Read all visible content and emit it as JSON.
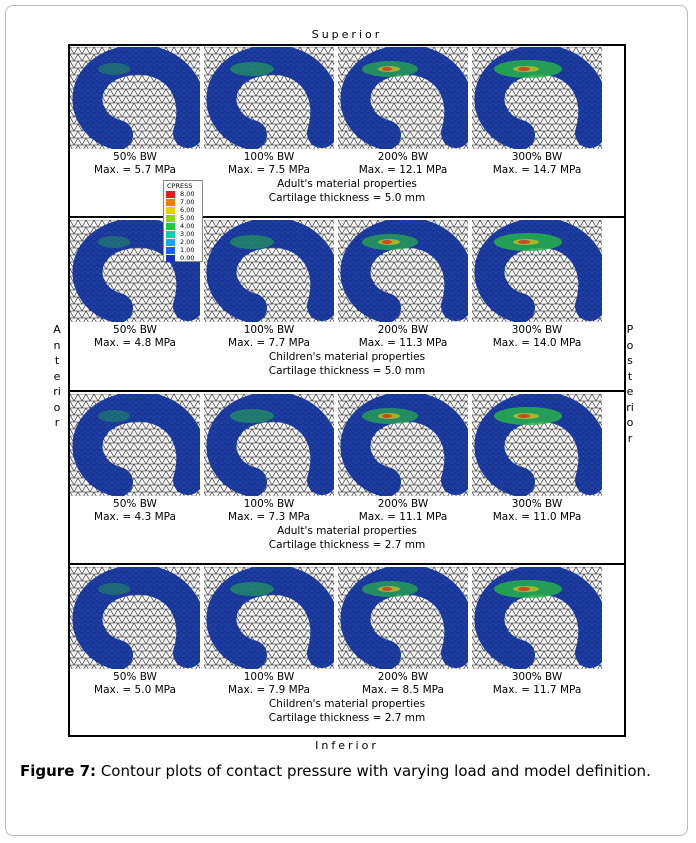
{
  "labels": {
    "superior": "Superior",
    "inferior": "Inferior",
    "anterior": "Anterior",
    "posterior": "Posterior"
  },
  "legend": {
    "title": "CPRESS",
    "values": [
      "8.00",
      "7.00",
      "6.00",
      "5.00",
      "4.00",
      "3.00",
      "2.00",
      "1.00",
      "0.00"
    ]
  },
  "rows": [
    {
      "panels": [
        {
          "load": "50% BW",
          "max": "Max. = 5.7 MPa"
        },
        {
          "load": "100% BW",
          "max": "Max. = 7.5 MPa"
        },
        {
          "load": "200% BW",
          "max": "Max. = 12.1 MPa"
        },
        {
          "load": "300% BW",
          "max": "Max. = 14.7 MPa"
        }
      ],
      "material": "Adult's material properties",
      "thickness": "Cartilage thickness = 5.0 mm"
    },
    {
      "panels": [
        {
          "load": "50% BW",
          "max": "Max. = 4.8 MPa"
        },
        {
          "load": "100% BW",
          "max": "Max. = 7.7 MPa"
        },
        {
          "load": "200% BW",
          "max": "Max. = 11.3 MPa"
        },
        {
          "load": "300% BW",
          "max": "Max. = 14.0 MPa"
        }
      ],
      "material": "Children's material properties",
      "thickness": "Cartilage thickness = 5.0 mm"
    },
    {
      "panels": [
        {
          "load": "50% BW",
          "max": "Max. = 4.3 MPa"
        },
        {
          "load": "100% BW",
          "max": "Max. = 7.3 MPa"
        },
        {
          "load": "200% BW",
          "max": "Max. = 11.1 MPa"
        },
        {
          "load": "300% BW",
          "max": "Max. = 11.0 MPa"
        }
      ],
      "material": "Adult's material properties",
      "thickness": "Cartilage thickness = 2.7 mm"
    },
    {
      "panels": [
        {
          "load": "50% BW",
          "max": "Max. = 5.0 MPa"
        },
        {
          "load": "100% BW",
          "max": "Max. = 7.9 MPa"
        },
        {
          "load": "200% BW",
          "max": "Max. = 8.5 MPa"
        },
        {
          "load": "300% BW",
          "max": "Max. = 11.7 MPa"
        }
      ],
      "material": "Children's material properties",
      "thickness": "Cartilage thickness = 2.7 mm"
    }
  ],
  "caption": {
    "label": "Figure 7:",
    "text": "Contour plots of contact pressure with varying load and model definition."
  }
}
